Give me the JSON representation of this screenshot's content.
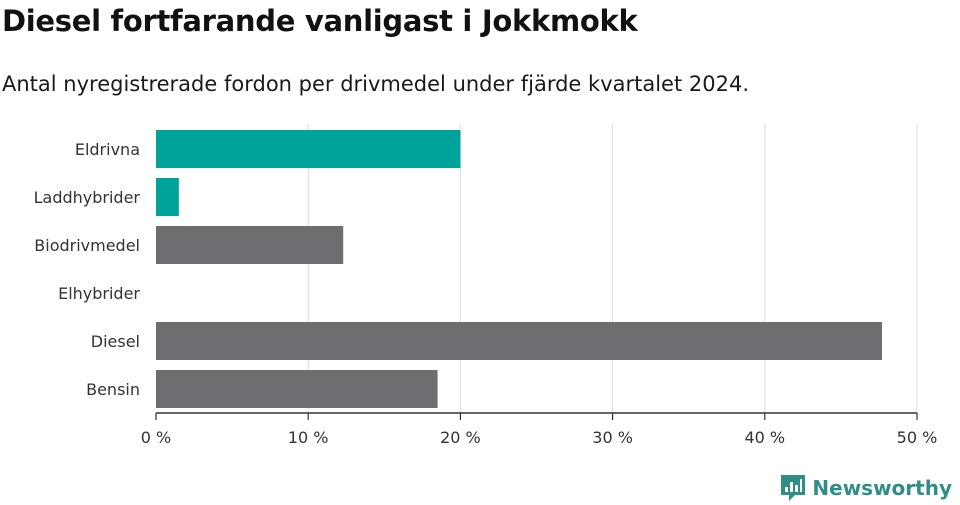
{
  "title": "Diesel fortfarande vanligast i Jokkmokk",
  "subtitle": "Antal nyregistrerade fordon per drivmedel under fjärde kvartalet 2024.",
  "brand": {
    "name": "Newsworthy",
    "color": "#2f8f86",
    "icon": "newsworthy-logo-icon"
  },
  "chart_data": {
    "type": "bar",
    "orientation": "horizontal",
    "categories": [
      "Eldrivna",
      "Laddhybrider",
      "Biodrivmedel",
      "Elhybrider",
      "Diesel",
      "Bensin"
    ],
    "values": [
      20.0,
      1.5,
      12.3,
      0,
      47.7,
      18.5
    ],
    "colors": [
      "#00a39a",
      "#00a39a",
      "#6e6d72",
      "#6e6d72",
      "#6e6d72",
      "#6e6d72"
    ],
    "xlim": [
      0,
      50
    ],
    "xticks": [
      0,
      10,
      20,
      30,
      40,
      50
    ],
    "xtick_labels": [
      "0 %",
      "10 %",
      "20 %",
      "30 %",
      "40 %",
      "50 %"
    ],
    "grid": true,
    "legend": "none"
  }
}
